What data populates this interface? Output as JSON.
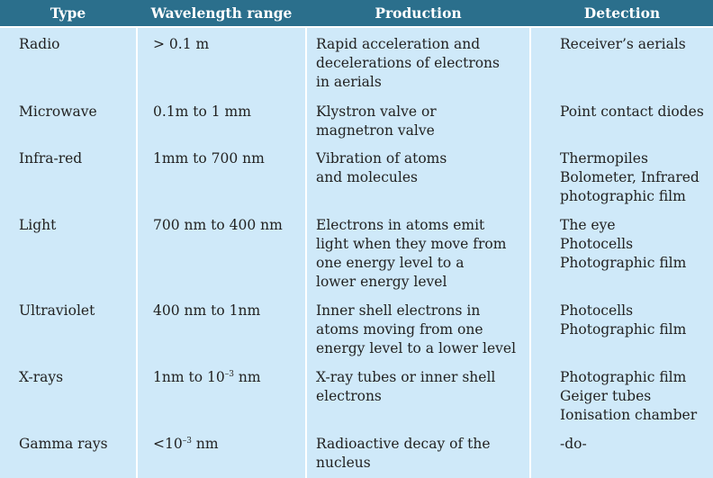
{
  "headers": {
    "type": "Type",
    "wavelength": "Wavelength range",
    "production": "Production",
    "detection": "Detection"
  },
  "rows": [
    {
      "type": "Radio",
      "wavelength": "> 0.1 m",
      "production": [
        "Rapid  acceleration and",
        "decelerations of electrons",
        "in aerials"
      ],
      "detection": [
        "Receiver’s aerials"
      ]
    },
    {
      "type": "Microwave",
      "wavelength": "0.1m to 1 mm",
      "production": [
        "Klystron valve or",
        "magnetron valve"
      ],
      "detection": [
        "Point contact diodes"
      ]
    },
    {
      "type": "Infra-red",
      "wavelength": "1mm to 700 nm",
      "production": [
        "Vibration of atoms",
        "and molecules"
      ],
      "detection": [
        "Thermopiles",
        "Bolometer, Infrared",
        "photographic film"
      ]
    },
    {
      "type": "Light",
      "wavelength": "700 nm to 400 nm",
      "production": [
        "Electrons in atoms emit",
        "light when they move from",
        "one energy level to a",
        "lower energy level"
      ],
      "detection": [
        "The eye",
        "Photocells",
        "Photographic film"
      ]
    },
    {
      "type": "Ultraviolet",
      "wavelength": "400 nm to 1nm",
      "production": [
        "Inner shell electrons in",
        "atoms moving from one",
        "energy level  to a lower level"
      ],
      "detection": [
        "Photocells",
        "Photographic film"
      ]
    },
    {
      "type": "X-rays",
      "wavelength_base": "1nm to 10",
      "wavelength_exp": "–3",
      "wavelength_unit": " nm",
      "production": [
        "X-ray tubes or inner shell",
        "electrons"
      ],
      "detection": [
        "Photographic film",
        "Geiger tubes",
        "Ionisation chamber"
      ]
    },
    {
      "type": "Gamma rays",
      "wavelength_base": "<10",
      "wavelength_exp": "–3",
      "wavelength_unit": " nm",
      "production": [
        "Radioactive decay of the",
        "nucleus"
      ],
      "detection": [
        "-do-"
      ]
    }
  ],
  "colors": {
    "header_bg": "#2b6f8c",
    "header_text": "#ffffff",
    "cell_bg": "#cfe9f9",
    "separator": "#ffffff"
  }
}
